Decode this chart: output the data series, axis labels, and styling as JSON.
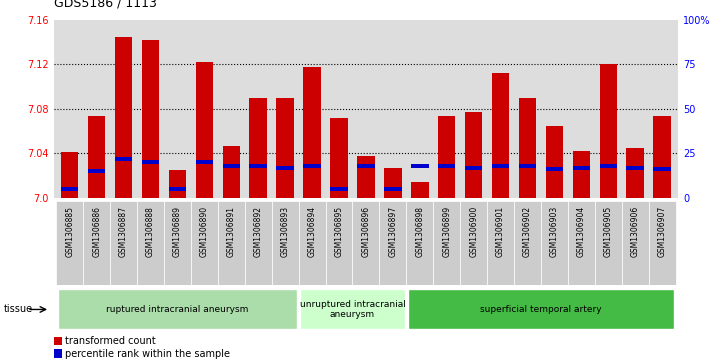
{
  "title": "GDS5186 / 1113",
  "samples": [
    "GSM1306885",
    "GSM1306886",
    "GSM1306887",
    "GSM1306888",
    "GSM1306889",
    "GSM1306890",
    "GSM1306891",
    "GSM1306892",
    "GSM1306893",
    "GSM1306894",
    "GSM1306895",
    "GSM1306896",
    "GSM1306897",
    "GSM1306898",
    "GSM1306899",
    "GSM1306900",
    "GSM1306901",
    "GSM1306902",
    "GSM1306903",
    "GSM1306904",
    "GSM1306905",
    "GSM1306906",
    "GSM1306907"
  ],
  "transformed_count": [
    7.041,
    7.074,
    7.145,
    7.142,
    7.025,
    7.122,
    7.047,
    7.09,
    7.09,
    7.118,
    7.072,
    7.038,
    7.027,
    7.014,
    7.074,
    7.077,
    7.112,
    7.09,
    7.065,
    7.042,
    7.12,
    7.045,
    7.074
  ],
  "percentile_rank": [
    5,
    15,
    22,
    20,
    5,
    20,
    18,
    18,
    17,
    18,
    5,
    18,
    5,
    18,
    18,
    17,
    18,
    18,
    16,
    17,
    18,
    17,
    16
  ],
  "ylim_left": [
    7.0,
    7.16
  ],
  "ylim_right": [
    0,
    100
  ],
  "yticks_left": [
    7.0,
    7.04,
    7.08,
    7.12,
    7.16
  ],
  "yticks_right": [
    0,
    25,
    50,
    75,
    100
  ],
  "ytick_labels_right": [
    "0",
    "25",
    "50",
    "75",
    "100%"
  ],
  "bar_color": "#cc0000",
  "percentile_color": "#0000cc",
  "tissue_groups": [
    {
      "label": "ruptured intracranial aneurysm",
      "start": 0,
      "end": 8,
      "color": "#aaddaa"
    },
    {
      "label": "unruptured intracranial\naneurysm",
      "start": 9,
      "end": 12,
      "color": "#ccffcc"
    },
    {
      "label": "superficial temporal artery",
      "start": 13,
      "end": 22,
      "color": "#44bb44"
    }
  ],
  "plot_bg_color": "#dddddd",
  "xtick_bg_color": "#cccccc"
}
